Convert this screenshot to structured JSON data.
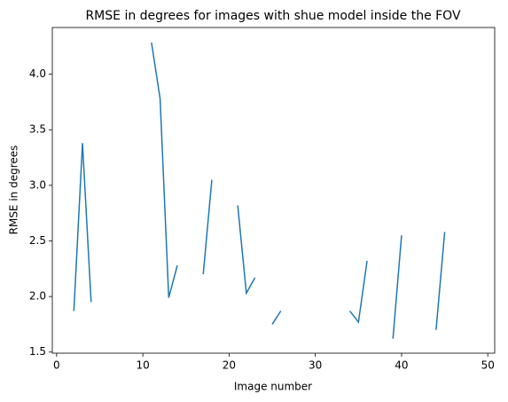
{
  "chart_data": {
    "type": "line",
    "title": "RMSE in degrees for images with shue model inside the FOV",
    "x_label": "Image number",
    "y_label": "RMSE in degrees",
    "x": [
      2,
      3,
      4,
      5,
      6,
      7,
      8,
      9,
      10,
      11,
      12,
      13,
      14,
      15,
      16,
      17,
      18,
      19,
      20,
      21,
      22,
      23,
      24,
      25,
      26,
      27,
      28,
      29,
      30,
      31,
      32,
      33,
      34,
      35,
      36,
      37,
      38,
      39,
      40,
      41,
      42,
      43,
      44,
      45
    ],
    "series": [
      {
        "color": "#1f77b4",
        "values": [
          1.87,
          3.38,
          1.95,
          null,
          null,
          null,
          null,
          null,
          null,
          4.285,
          3.78,
          1.99,
          2.28,
          null,
          null,
          2.2,
          3.05,
          null,
          null,
          2.82,
          2.03,
          2.17,
          null,
          1.75,
          1.87,
          null,
          null,
          null,
          null,
          null,
          null,
          null,
          1.87,
          1.77,
          2.32,
          null,
          null,
          1.62,
          2.55,
          null,
          null,
          null,
          1.7,
          2.58
        ]
      }
    ],
    "xlim": [
      -0.5,
      50.8
    ],
    "ylim": [
      1.49,
      4.42
    ],
    "xticks": [
      0,
      10,
      20,
      30,
      40,
      50
    ],
    "yticks": [
      1.5,
      {
        "value": 2.0,
        "label": "2.0"
      },
      2.5,
      {
        "value": 3.0,
        "label": "3.0"
      },
      3.5,
      {
        "value": 4.0,
        "label": "4.0"
      }
    ]
  }
}
